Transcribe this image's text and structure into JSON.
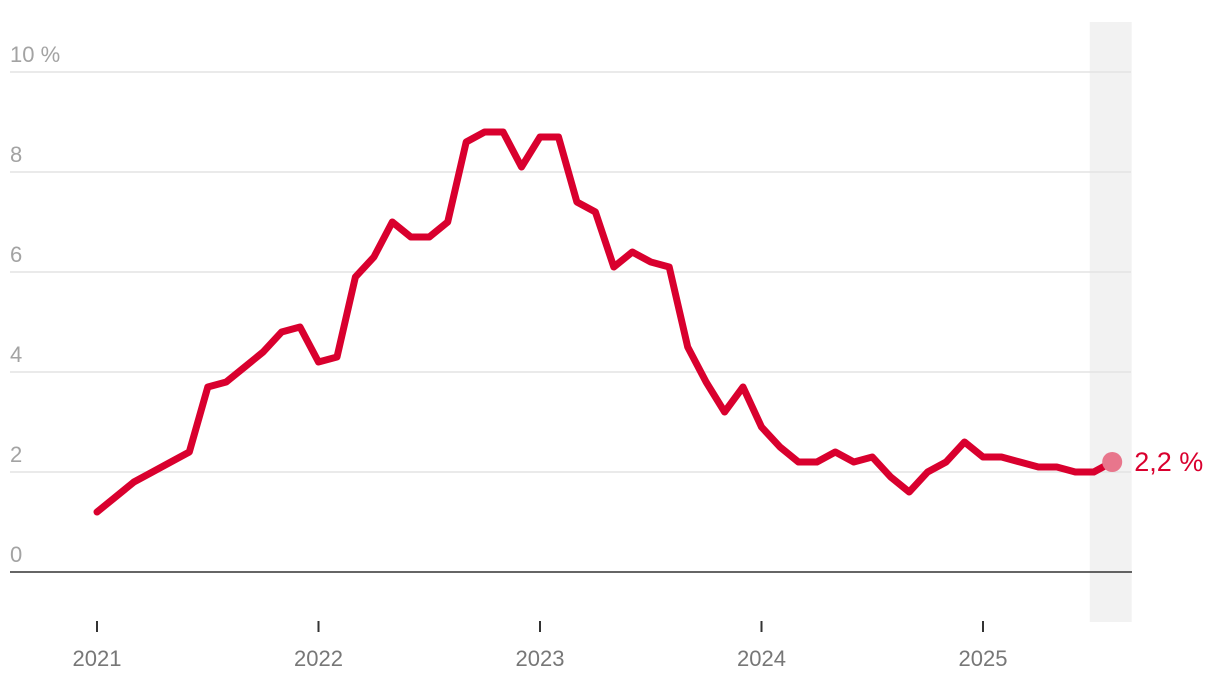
{
  "chart_data": {
    "type": "line",
    "title": "",
    "xlabel": "",
    "ylabel": "",
    "ylim": [
      0,
      10
    ],
    "grid": true,
    "y_ticks": [
      {
        "value": 0,
        "label": "0"
      },
      {
        "value": 2,
        "label": "2"
      },
      {
        "value": 4,
        "label": "4"
      },
      {
        "value": 6,
        "label": "6"
      },
      {
        "value": 8,
        "label": "8"
      },
      {
        "value": 10,
        "label": "10 %"
      }
    ],
    "x_ticks": [
      {
        "value": "2021-01",
        "label": "2021"
      },
      {
        "value": "2022-01",
        "label": "2022"
      },
      {
        "value": "2023-01",
        "label": "2023"
      },
      {
        "value": "2024-01",
        "label": "2024"
      },
      {
        "value": "2025-01",
        "label": "2025"
      }
    ],
    "x_range": [
      "2020-10",
      "2025-09"
    ],
    "highlight_range": [
      "2025-07",
      "2025-09"
    ],
    "series": [
      {
        "color": "#d9002e",
        "x": [
          "2021-01",
          "2021-02",
          "2021-03",
          "2021-04",
          "2021-05",
          "2021-06",
          "2021-07",
          "2021-08",
          "2021-09",
          "2021-10",
          "2021-11",
          "2021-12",
          "2022-01",
          "2022-02",
          "2022-03",
          "2022-04",
          "2022-05",
          "2022-06",
          "2022-07",
          "2022-08",
          "2022-09",
          "2022-10",
          "2022-11",
          "2022-12",
          "2023-01",
          "2023-02",
          "2023-03",
          "2023-04",
          "2023-05",
          "2023-06",
          "2023-07",
          "2023-08",
          "2023-09",
          "2023-10",
          "2023-11",
          "2023-12",
          "2024-01",
          "2024-02",
          "2024-03",
          "2024-04",
          "2024-05",
          "2024-06",
          "2024-07",
          "2024-08",
          "2024-09",
          "2024-10",
          "2024-11",
          "2024-12",
          "2025-01",
          "2025-02",
          "2025-03",
          "2025-04",
          "2025-05",
          "2025-06",
          "2025-07",
          "2025-08"
        ],
        "values": [
          1.2,
          1.5,
          1.8,
          2.0,
          2.2,
          2.4,
          3.7,
          3.8,
          4.1,
          4.4,
          4.8,
          4.9,
          4.2,
          4.3,
          5.9,
          6.3,
          7.0,
          6.7,
          6.7,
          7.0,
          8.6,
          8.8,
          8.8,
          8.1,
          8.7,
          8.7,
          7.4,
          7.2,
          6.1,
          6.4,
          6.2,
          6.1,
          4.5,
          3.8,
          3.2,
          3.7,
          2.9,
          2.5,
          2.2,
          2.2,
          2.4,
          2.2,
          2.3,
          1.9,
          1.6,
          2.0,
          2.2,
          2.6,
          2.3,
          2.3,
          2.2,
          2.1,
          2.1,
          2.0,
          2.0,
          2.2
        ]
      }
    ],
    "end_label": "2,2 %"
  }
}
